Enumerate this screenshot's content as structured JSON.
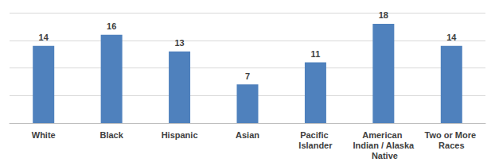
{
  "chart_data": {
    "type": "bar",
    "categories": [
      "White",
      "Black",
      "Hispanic",
      "Asian",
      "Pacific Islander",
      "American Indian / Alaska Native",
      "Two or More Races"
    ],
    "values": [
      14,
      16,
      13,
      7,
      11,
      18,
      14
    ],
    "color": "#4f81bd",
    "ylim": [
      0,
      20
    ],
    "yticks": [
      0,
      5,
      10,
      15,
      20
    ],
    "grid": true,
    "data_labels": true,
    "tick_labels": "x"
  }
}
